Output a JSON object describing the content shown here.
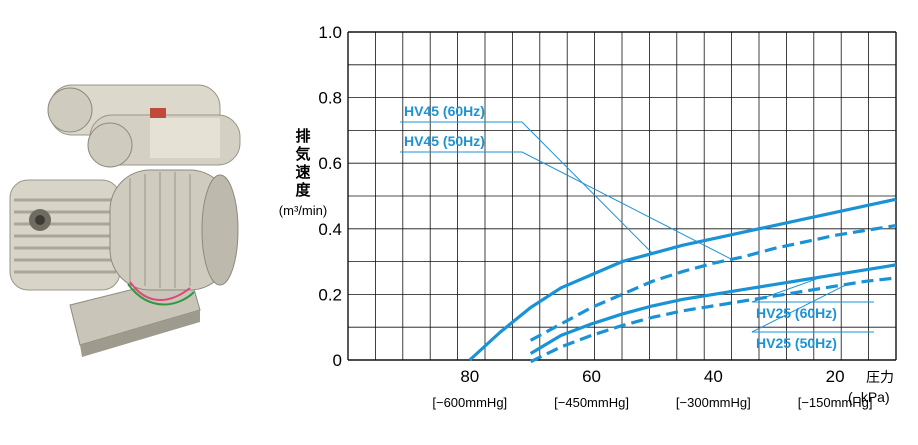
{
  "chart_data": {
    "type": "line",
    "xlabel": "圧力",
    "xunit": "(−kPa)",
    "ylabel": [
      "排",
      "気",
      "速",
      "度"
    ],
    "yunit": "(m³/min)",
    "xlim": [
      100,
      10
    ],
    "ylim": [
      0,
      1.0
    ],
    "x_ticks": [
      80,
      60,
      40,
      20
    ],
    "y_ticks": [
      "0",
      "0.2",
      "0.4",
      "0.6",
      "0.8",
      "1.0"
    ],
    "y_tick_values": [
      0,
      0.2,
      0.4,
      0.6,
      0.8,
      1.0
    ],
    "mmhg_labels": [
      "[−600mmHg]",
      "[−450mmHg]",
      "[−300mmHg]",
      "[−150mmHg]"
    ],
    "grid": true,
    "series": [
      {
        "name": "HV45 (60Hz)",
        "style": "solid",
        "color": "#1a93d6",
        "x": [
          80,
          75,
          70,
          65,
          60,
          55,
          50,
          45,
          40,
          35,
          30,
          25,
          20,
          15,
          10
        ],
        "y": [
          0,
          0.085,
          0.16,
          0.22,
          0.26,
          0.3,
          0.325,
          0.35,
          0.37,
          0.39,
          0.41,
          0.43,
          0.45,
          0.47,
          0.49
        ]
      },
      {
        "name": "HV45 (50Hz)",
        "style": "dashed",
        "color": "#1a93d6",
        "x": [
          70,
          65,
          60,
          55,
          50,
          45,
          40,
          35,
          30,
          25,
          20,
          15,
          10
        ],
        "y": [
          0.06,
          0.11,
          0.16,
          0.2,
          0.24,
          0.27,
          0.295,
          0.315,
          0.34,
          0.36,
          0.38,
          0.395,
          0.41
        ]
      },
      {
        "name": "HV25 (60Hz)",
        "style": "solid",
        "color": "#1a93d6",
        "x": [
          70,
          65,
          60,
          55,
          50,
          45,
          40,
          35,
          30,
          25,
          20,
          15,
          10
        ],
        "y": [
          0.02,
          0.075,
          0.11,
          0.14,
          0.165,
          0.185,
          0.2,
          0.215,
          0.23,
          0.245,
          0.26,
          0.275,
          0.29
        ]
      },
      {
        "name": "HV25 (50Hz)",
        "style": "dashed",
        "color": "#1a93d6",
        "x": [
          70,
          65,
          60,
          55,
          50,
          45,
          40,
          35,
          30,
          25,
          20,
          15,
          10
        ],
        "y": [
          -0.005,
          0.04,
          0.075,
          0.105,
          0.13,
          0.15,
          0.165,
          0.18,
          0.195,
          0.21,
          0.225,
          0.24,
          0.25
        ]
      }
    ],
    "annotations": [
      {
        "text": "HV45 (60Hz)",
        "target_series": 0,
        "target_x": 50
      },
      {
        "text": "HV45 (50Hz)",
        "target_series": 1,
        "target_x": 37
      },
      {
        "text": "HV25 (60Hz)",
        "target_series": 2,
        "target_x": 22
      },
      {
        "text": "HV25 (50Hz)",
        "target_series": 3,
        "target_x": 18
      }
    ]
  }
}
